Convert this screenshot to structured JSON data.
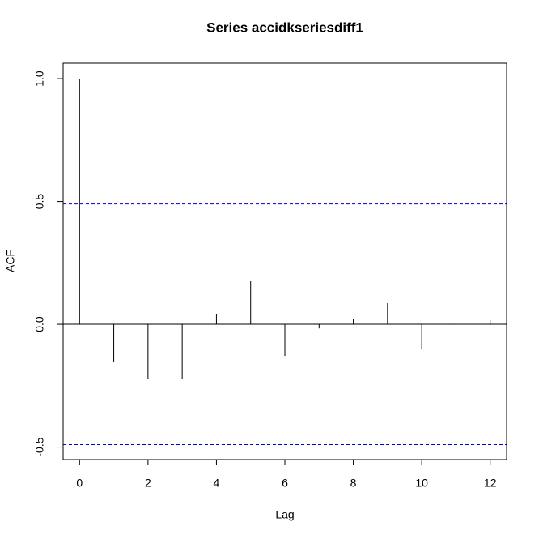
{
  "chart_data": {
    "type": "acf",
    "title": "Series  accidkseriesdiff1",
    "x_label": "Lag",
    "y_label": "ACF",
    "x": [
      0,
      1,
      2,
      3,
      4,
      5,
      6,
      7,
      8,
      9,
      10,
      11,
      12
    ],
    "values": [
      1.0,
      -0.155,
      -0.224,
      -0.224,
      0.04,
      0.175,
      -0.129,
      -0.017,
      0.023,
      0.086,
      -0.099,
      0.003,
      0.017
    ],
    "color": "#000000",
    "ci": [
      0.49,
      -0.49
    ],
    "ci_color": "#0000cd",
    "xlim": [
      -0.48,
      12.48
    ],
    "ylim": [
      -0.551,
      1.063
    ],
    "xticks": [
      0,
      2,
      4,
      6,
      8,
      10,
      12
    ],
    "yticks": [
      -0.5,
      {
        "value": 0,
        "label": "0.0"
      },
      0.5,
      {
        "value": 1,
        "label": "1.0"
      }
    ]
  }
}
